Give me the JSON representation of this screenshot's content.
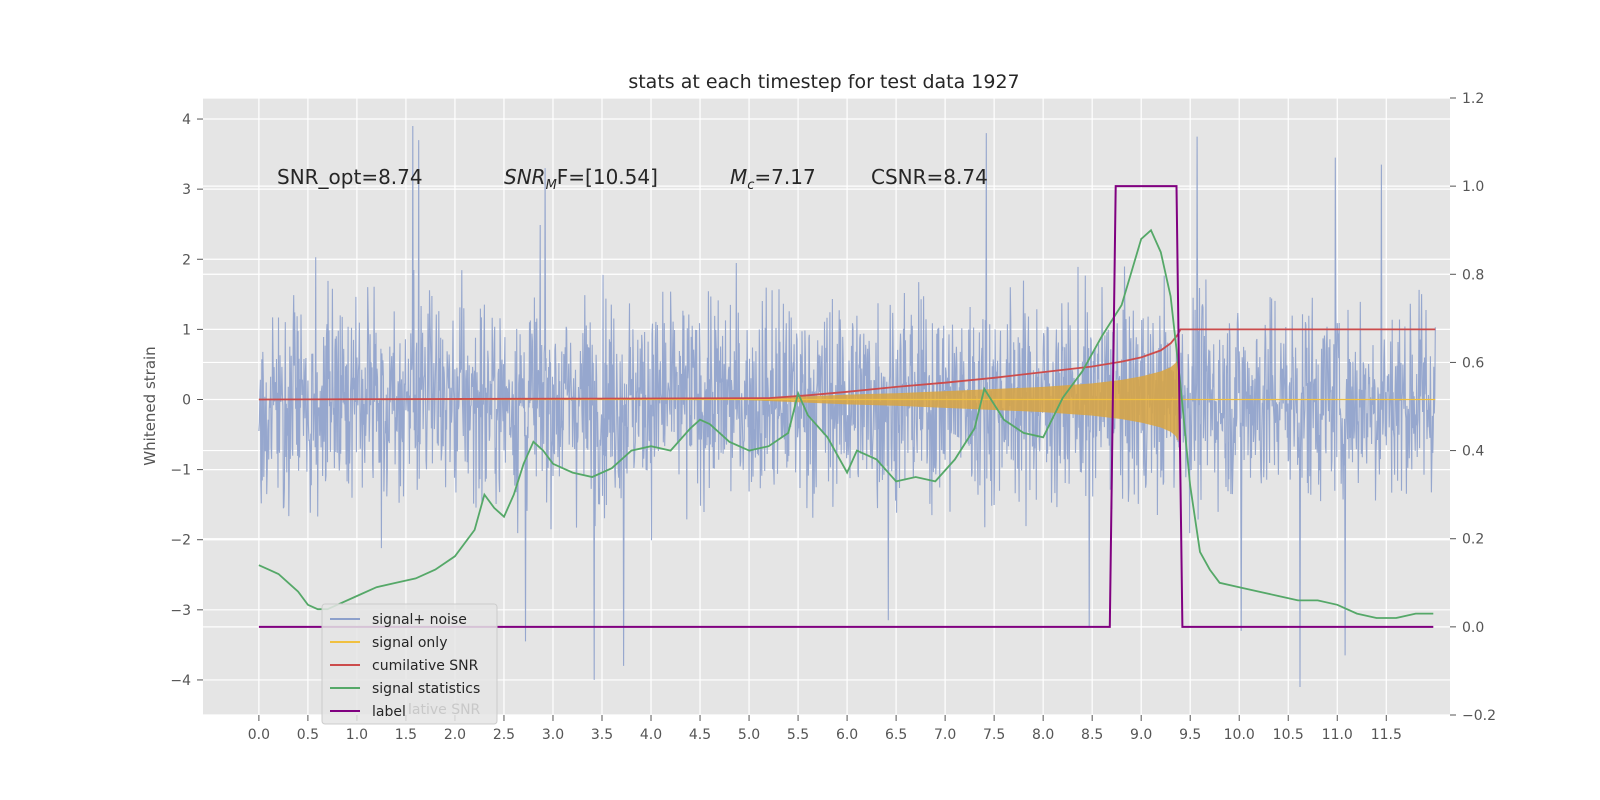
{
  "chart_data": {
    "type": "line",
    "title": "stats at each timestep for test data 1927",
    "ylabel_left": "Whitened strain",
    "xlabel": "",
    "xlim": [
      -0.57,
      12.15
    ],
    "ylim_left": [
      -4.5,
      4.3
    ],
    "ylim_right": [
      -0.2,
      1.2
    ],
    "x_ticks": [
      0.0,
      0.5,
      1.0,
      1.5,
      2.0,
      2.5,
      3.0,
      3.5,
      4.0,
      4.5,
      5.0,
      5.5,
      6.0,
      6.5,
      7.0,
      7.5,
      8.0,
      8.5,
      9.0,
      9.5,
      10.0,
      10.5,
      11.0,
      11.5
    ],
    "x_tick_labels": [
      "0.0",
      "0.5",
      "1.0",
      "1.5",
      "2.0",
      "2.5",
      "3.0",
      "3.5",
      "4.0",
      "4.5",
      "5.0",
      "5.5",
      "6.0",
      "6.5",
      "7.0",
      "7.5",
      "8.0",
      "8.5",
      "9.0",
      "9.5",
      "10.0",
      "10.5",
      "11.0",
      "11.5"
    ],
    "y_left_ticks": [
      -4,
      -3,
      -2,
      -1,
      0,
      1,
      2,
      3,
      4
    ],
    "y_left_tick_labels": [
      "−4",
      "−3",
      "−2",
      "−1",
      "0",
      "1",
      "2",
      "3",
      "4"
    ],
    "y_right_ticks": [
      -0.2,
      0.0,
      0.2,
      0.4,
      0.6,
      0.8,
      1.0,
      1.2
    ],
    "y_right_tick_labels": [
      "−0.2",
      "0.0",
      "0.2",
      "0.4",
      "0.6",
      "0.8",
      "1.0",
      "1.2"
    ],
    "grid": true,
    "legend_placement": "lower-left",
    "annotations": {
      "snr_opt": "SNR_opt=8.74",
      "snr_mf_base": "SNR",
      "snr_mf_sub": "M",
      "snr_mf_rest": "F=[10.54]",
      "mc_base": "M",
      "mc_sub": "c",
      "mc_rest": "=7.17",
      "csnr": "CSNR=8.74"
    },
    "legend": [
      {
        "label": "signal+ noise",
        "color": "#8da0cb"
      },
      {
        "label": "signal only",
        "color": "#f0c040"
      },
      {
        "label": "cumilative SNR",
        "color": "#cc4c4c"
      },
      {
        "label": "signal statistics",
        "color": "#55a868"
      },
      {
        "label": "label",
        "color": "#800080"
      }
    ],
    "legend_overflow_text": "lative SNR",
    "series": [
      {
        "name": "signal+ noise",
        "axis": "left",
        "color": "#8da0cb",
        "description_range": [
          -4.0,
          3.9
        ],
        "x_start": 0.0,
        "x_end": 12.0,
        "outliers": [
          {
            "x": 1.57,
            "y": 3.9
          },
          {
            "x": 1.63,
            "y": 3.7
          },
          {
            "x": 3.42,
            "y": -4.0
          },
          {
            "x": 3.72,
            "y": -3.8
          },
          {
            "x": 7.42,
            "y": 3.8
          },
          {
            "x": 10.62,
            "y": -4.1
          },
          {
            "x": 11.08,
            "y": -3.65
          },
          {
            "x": 9.57,
            "y": 3.75
          },
          {
            "x": 11.45,
            "y": 3.35
          },
          {
            "x": 10.98,
            "y": 3.45
          },
          {
            "x": 2.72,
            "y": -3.45
          },
          {
            "x": 6.42,
            "y": -3.15
          },
          {
            "x": 8.47,
            "y": -3.25
          },
          {
            "x": 10.02,
            "y": -3.3
          },
          {
            "x": 2.92,
            "y": 3.3
          }
        ]
      },
      {
        "name": "signal only",
        "axis": "left",
        "color": "#f0c040",
        "envelope_x": [
          5.0,
          5.5,
          6.0,
          6.5,
          7.0,
          7.5,
          8.0,
          8.5,
          8.8,
          9.0,
          9.2,
          9.3,
          9.35,
          9.38,
          9.4
        ],
        "envelope_amp": [
          0.01,
          0.04,
          0.07,
          0.09,
          0.12,
          0.15,
          0.18,
          0.23,
          0.28,
          0.33,
          0.4,
          0.46,
          0.52,
          0.6,
          0.0
        ]
      },
      {
        "name": "cumilative SNR",
        "axis": "left",
        "color": "#cc4c4c",
        "x": [
          0.0,
          5.2,
          5.6,
          6.0,
          6.5,
          7.0,
          7.5,
          8.0,
          8.5,
          8.8,
          9.0,
          9.2,
          9.3,
          9.37,
          9.4,
          12.0
        ],
        "y": [
          0.0,
          0.02,
          0.06,
          0.11,
          0.18,
          0.24,
          0.31,
          0.39,
          0.47,
          0.54,
          0.6,
          0.7,
          0.8,
          0.92,
          1.0,
          1.0
        ]
      },
      {
        "name": "signal statistics",
        "axis": "right",
        "color": "#55a868",
        "x": [
          0.0,
          0.1,
          0.2,
          0.3,
          0.4,
          0.5,
          0.6,
          0.7,
          0.8,
          1.0,
          1.2,
          1.4,
          1.6,
          1.8,
          2.0,
          2.2,
          2.3,
          2.4,
          2.5,
          2.6,
          2.7,
          2.8,
          2.9,
          3.0,
          3.2,
          3.4,
          3.6,
          3.8,
          4.0,
          4.2,
          4.4,
          4.5,
          4.6,
          4.8,
          5.0,
          5.2,
          5.4,
          5.5,
          5.6,
          5.8,
          6.0,
          6.1,
          6.3,
          6.5,
          6.7,
          6.9,
          7.1,
          7.3,
          7.4,
          7.6,
          7.8,
          8.0,
          8.2,
          8.4,
          8.5,
          8.6,
          8.8,
          9.0,
          9.1,
          9.2,
          9.3,
          9.4,
          9.5,
          9.6,
          9.7,
          9.8,
          10.0,
          10.2,
          10.4,
          10.6,
          10.8,
          11.0,
          11.2,
          11.4,
          11.6,
          11.8,
          11.98
        ],
        "y": [
          0.14,
          0.13,
          0.12,
          0.1,
          0.08,
          0.05,
          0.04,
          0.04,
          0.05,
          0.07,
          0.09,
          0.1,
          0.11,
          0.13,
          0.16,
          0.22,
          0.3,
          0.27,
          0.25,
          0.3,
          0.37,
          0.42,
          0.4,
          0.37,
          0.35,
          0.34,
          0.36,
          0.4,
          0.41,
          0.4,
          0.45,
          0.47,
          0.46,
          0.42,
          0.4,
          0.41,
          0.44,
          0.53,
          0.48,
          0.43,
          0.35,
          0.4,
          0.38,
          0.33,
          0.34,
          0.33,
          0.38,
          0.45,
          0.54,
          0.47,
          0.44,
          0.43,
          0.52,
          0.58,
          0.62,
          0.66,
          0.73,
          0.88,
          0.9,
          0.85,
          0.75,
          0.55,
          0.32,
          0.17,
          0.13,
          0.1,
          0.09,
          0.08,
          0.07,
          0.06,
          0.06,
          0.05,
          0.03,
          0.02,
          0.02,
          0.03,
          0.03
        ]
      },
      {
        "name": "label",
        "axis": "right",
        "color": "#800080",
        "x": [
          0.0,
          8.68,
          8.74,
          9.36,
          9.42,
          11.98
        ],
        "y": [
          0.0,
          0.0,
          1.0,
          1.0,
          0.0,
          0.0
        ]
      }
    ]
  }
}
